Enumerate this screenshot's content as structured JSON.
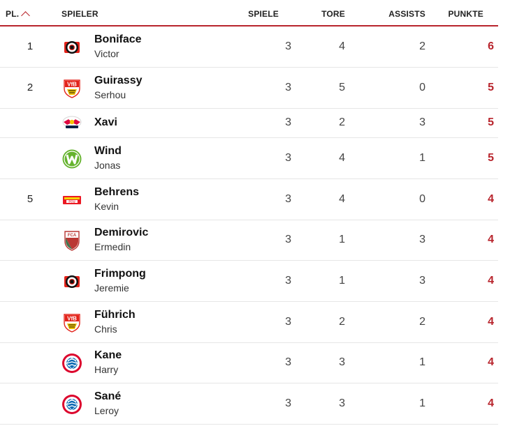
{
  "header": {
    "pl": "PL.",
    "spieler": "SPIELER",
    "spiele": "SPIELE",
    "tore": "TORE",
    "assists": "ASSISTS",
    "punkte": "PUNKTE"
  },
  "rows": [
    {
      "rank": "1",
      "last": "Boniface",
      "first": "Victor",
      "club": "leverkusen",
      "spiele": "3",
      "tore": "4",
      "assists": "2",
      "punkte": "6"
    },
    {
      "rank": "2",
      "last": "Guirassy",
      "first": "Serhou",
      "club": "stuttgart",
      "spiele": "3",
      "tore": "5",
      "assists": "0",
      "punkte": "5"
    },
    {
      "rank": "",
      "last": "Xavi",
      "first": "",
      "club": "leipzig",
      "spiele": "3",
      "tore": "2",
      "assists": "3",
      "punkte": "5"
    },
    {
      "rank": "",
      "last": "Wind",
      "first": "Jonas",
      "club": "wolfsburg",
      "spiele": "3",
      "tore": "4",
      "assists": "1",
      "punkte": "5"
    },
    {
      "rank": "5",
      "last": "Behrens",
      "first": "Kevin",
      "club": "union",
      "spiele": "3",
      "tore": "4",
      "assists": "0",
      "punkte": "4"
    },
    {
      "rank": "",
      "last": "Demirovic",
      "first": "Ermedin",
      "club": "augsburg",
      "spiele": "3",
      "tore": "1",
      "assists": "3",
      "punkte": "4"
    },
    {
      "rank": "",
      "last": "Frimpong",
      "first": "Jeremie",
      "club": "leverkusen",
      "spiele": "3",
      "tore": "1",
      "assists": "3",
      "punkte": "4"
    },
    {
      "rank": "",
      "last": "Führich",
      "first": "Chris",
      "club": "stuttgart",
      "spiele": "3",
      "tore": "2",
      "assists": "2",
      "punkte": "4"
    },
    {
      "rank": "",
      "last": "Kane",
      "first": "Harry",
      "club": "bayern",
      "spiele": "3",
      "tore": "3",
      "assists": "1",
      "punkte": "4"
    },
    {
      "rank": "",
      "last": "Sané",
      "first": "Leroy",
      "club": "bayern",
      "spiele": "3",
      "tore": "3",
      "assists": "1",
      "punkte": "4"
    }
  ],
  "colors": {
    "accent": "#b8242c"
  }
}
